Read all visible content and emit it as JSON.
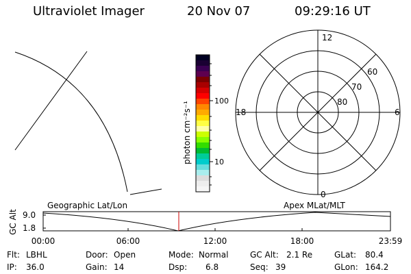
{
  "header": {
    "title": "Ultraviolet Imager",
    "date": "20 Nov 07",
    "time": "09:29:16 UT"
  },
  "colorbar": {
    "label": "photon cm⁻²s⁻¹",
    "ticks": [
      "100",
      "10"
    ],
    "colors": [
      "#000022",
      "#1a0033",
      "#3a0052",
      "#5e004f",
      "#7a0000",
      "#a80000",
      "#d40000",
      "#ff0000",
      "#ff4400",
      "#ff8800",
      "#ffaa00",
      "#ffdd00",
      "#ffff44",
      "#ffffaa",
      "#ccff00",
      "#88ff00",
      "#33dd00",
      "#00bb33",
      "#00cc99",
      "#00cccc",
      "#66dddd",
      "#aaeeee",
      "#dddddd",
      "#eeeeee",
      "#f6f6f6"
    ]
  },
  "polar": {
    "hour_labels": {
      "top": "12",
      "right": "6",
      "bottom": "0",
      "left": "18"
    },
    "lat_labels": [
      "60",
      "70",
      "80"
    ]
  },
  "timeline": {
    "axis_label": "GC Alt",
    "y_ticks": [
      "9.0",
      "1.8"
    ],
    "left_label": "Geographic Lat/Lon",
    "right_label": "Apex MLat/MLT",
    "x_ticks": [
      "00:00",
      "06:00",
      "12:00",
      "18:00",
      "23:59"
    ],
    "marker_color": "#cc0000"
  },
  "status": [
    [
      {
        "label": "Flt:",
        "value": "LBHL"
      },
      {
        "label": "IP:",
        "value": "36.0"
      }
    ],
    [
      {
        "label": "Door:",
        "value": "Open"
      },
      {
        "label": "Gain:",
        "value": "14"
      }
    ],
    [
      {
        "label": "Mode:",
        "value": "Normal"
      },
      {
        "label": "Dsp:",
        "value": "6.8"
      }
    ],
    [
      {
        "label": "GC Alt:",
        "value": "2.1 Re"
      },
      {
        "label": "Seq:",
        "value": "39"
      }
    ],
    [
      {
        "label": "GLat:",
        "value": "80.4"
      },
      {
        "label": "GLon:",
        "value": "164.2"
      }
    ]
  ]
}
